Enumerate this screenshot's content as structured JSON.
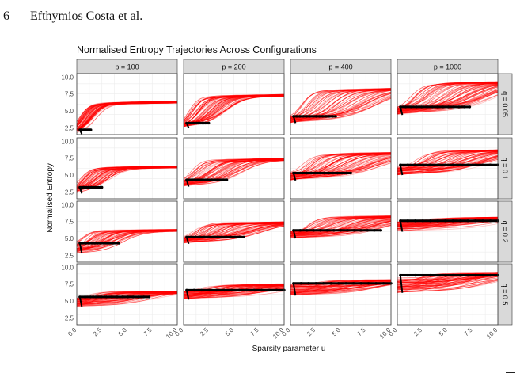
{
  "header": {
    "page_number": "6",
    "authors": "Efthymios Costa et al."
  },
  "chart_data": {
    "type": "line",
    "title": "Normalised Entropy Trajectories Across Configurations",
    "xlabel": "Sparsity parameter u",
    "ylabel": "Normalised Entropy",
    "col_facets": [
      "p = 100",
      "p = 200",
      "p = 400",
      "p = 1000"
    ],
    "row_facets": [
      "q = 0.05",
      "q = 0.1",
      "q = 0.2",
      "q = 0.5"
    ],
    "xlim": [
      0,
      10
    ],
    "ylim": [
      1.5,
      10.5
    ],
    "x_ticks": [
      "0.0",
      "2.5",
      "5.0",
      "7.5",
      "10.0"
    ],
    "y_ticks": [
      "2.5",
      "5.0",
      "7.5",
      "10.0"
    ],
    "colors": {
      "trajectories": "#ff0000",
      "highlight": "#000000",
      "strip": "#d9d9d9",
      "panel_border": "#333333",
      "grid": "#ececec"
    },
    "grid": true,
    "panels": [
      {
        "row": 0,
        "col": 0,
        "plateau": 6.3,
        "start": 1.6,
        "level": 2.2,
        "seg_end": 1.4,
        "rise_lo": 0.3,
        "rise_hi": 1.8
      },
      {
        "row": 0,
        "col": 1,
        "plateau": 7.3,
        "start": 2.5,
        "level": 3.2,
        "seg_end": 2.5,
        "rise_lo": 0.5,
        "rise_hi": 4.5
      },
      {
        "row": 0,
        "col": 2,
        "plateau": 8.2,
        "start": 3.2,
        "level": 4.2,
        "seg_end": 4.5,
        "rise_lo": 1.0,
        "rise_hi": 9.0
      },
      {
        "row": 0,
        "col": 3,
        "plateau": 9.2,
        "start": 4.4,
        "level": 5.6,
        "seg_end": 7.2,
        "rise_lo": 1.5,
        "rise_hi": 10.0
      },
      {
        "row": 1,
        "col": 0,
        "plateau": 6.2,
        "start": 2.3,
        "level": 3.2,
        "seg_end": 2.5,
        "rise_lo": 0.5,
        "rise_hi": 3.2
      },
      {
        "row": 1,
        "col": 1,
        "plateau": 7.3,
        "start": 3.3,
        "level": 4.3,
        "seg_end": 4.3,
        "rise_lo": 0.8,
        "rise_hi": 6.0
      },
      {
        "row": 1,
        "col": 2,
        "plateau": 8.2,
        "start": 4.2,
        "level": 5.3,
        "seg_end": 6.0,
        "rise_lo": 1.2,
        "rise_hi": 9.5
      },
      {
        "row": 1,
        "col": 3,
        "plateau": 8.6,
        "start": 5.0,
        "level": 6.5,
        "seg_end": 10.0,
        "rise_lo": 2.0,
        "rise_hi": 10.0
      },
      {
        "row": 2,
        "col": 0,
        "plateau": 6.2,
        "start": 2.8,
        "level": 4.3,
        "seg_end": 4.2,
        "rise_lo": 0.6,
        "rise_hi": 4.8
      },
      {
        "row": 2,
        "col": 1,
        "plateau": 7.3,
        "start": 4.2,
        "level": 5.2,
        "seg_end": 6.0,
        "rise_lo": 1.0,
        "rise_hi": 8.0
      },
      {
        "row": 2,
        "col": 2,
        "plateau": 8.2,
        "start": 5.0,
        "level": 6.2,
        "seg_end": 9.0,
        "rise_lo": 1.5,
        "rise_hi": 10.0
      },
      {
        "row": 2,
        "col": 3,
        "plateau": 8.0,
        "start": 6.0,
        "level": 7.6,
        "seg_end": 10.0,
        "rise_lo": 1.5,
        "rise_hi": 10.0
      },
      {
        "row": 3,
        "col": 0,
        "plateau": 6.3,
        "start": 4.2,
        "level": 5.6,
        "seg_end": 7.2,
        "rise_lo": 1.0,
        "rise_hi": 8.0
      },
      {
        "row": 3,
        "col": 1,
        "plateau": 7.4,
        "start": 5.2,
        "level": 6.6,
        "seg_end": 10.0,
        "rise_lo": 1.5,
        "rise_hi": 10.0
      },
      {
        "row": 3,
        "col": 2,
        "plateau": 8.0,
        "start": 5.8,
        "level": 7.6,
        "seg_end": 10.0,
        "rise_lo": 2.0,
        "rise_hi": 10.0
      },
      {
        "row": 3,
        "col": 3,
        "plateau": 9.0,
        "start": 6.2,
        "level": 8.8,
        "seg_end": 10.0,
        "rise_lo": 2.0,
        "rise_hi": 10.0
      }
    ]
  }
}
